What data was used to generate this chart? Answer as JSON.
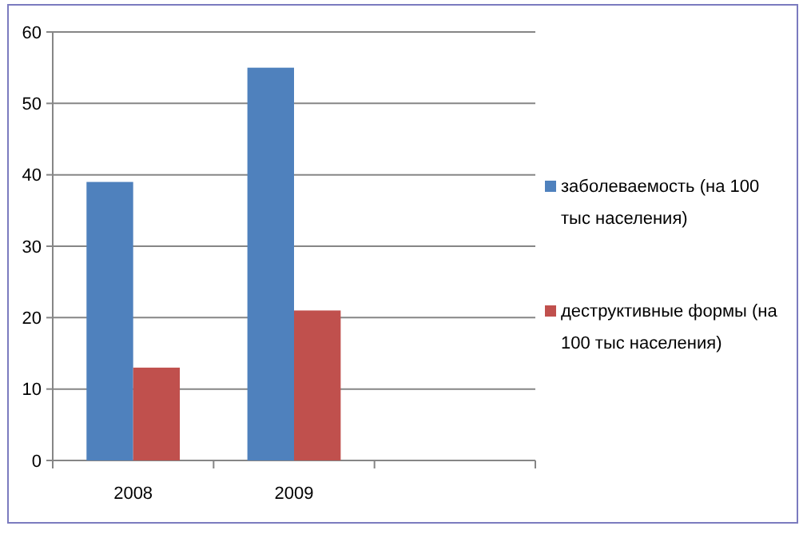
{
  "chart_data": {
    "type": "bar",
    "categories": [
      "2008",
      "2009",
      null
    ],
    "series": [
      {
        "name": "заболеваемость (на 100 тыс населения)",
        "color": "#4f81bd",
        "values": [
          39,
          55,
          null
        ]
      },
      {
        "name": "деструктивные формы (на 100 тыс населения)",
        "color": "#c0504d",
        "values": [
          13,
          21,
          null
        ]
      }
    ],
    "ylim": [
      0,
      60
    ],
    "yticks": [
      0,
      10,
      20,
      30,
      40,
      50,
      60
    ],
    "grid": "y",
    "legend": "right"
  }
}
